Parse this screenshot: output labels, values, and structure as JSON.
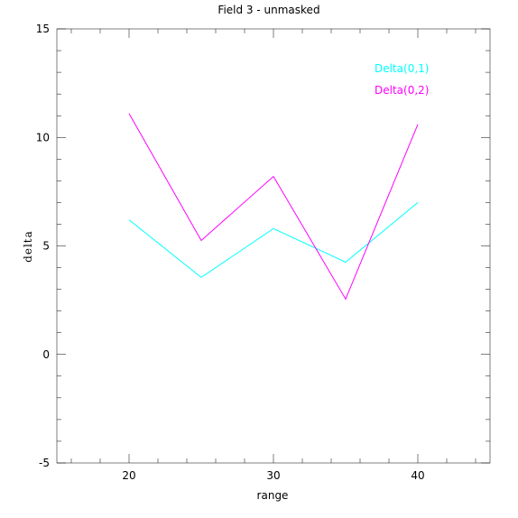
{
  "chart_data": {
    "type": "line",
    "title": "Field 3 - unmasked",
    "xlabel": "range",
    "ylabel": "delta",
    "xlim": [
      15,
      45
    ],
    "ylim": [
      -5,
      15
    ],
    "xticks": [
      20,
      30,
      40
    ],
    "xtick_labels": [
      "20",
      "30",
      "40"
    ],
    "yticks": [
      -5,
      0,
      5,
      10,
      15
    ],
    "ytick_labels": [
      "-5",
      "0",
      "5",
      "10",
      "15"
    ],
    "x": [
      20,
      25,
      30,
      35,
      40
    ],
    "series": [
      {
        "name": "Delta(0,1)",
        "color": "#00ffff",
        "values": [
          6.2,
          3.55,
          5.8,
          4.25,
          7.0
        ]
      },
      {
        "name": "Delta(0,2)",
        "color": "#ff00ff",
        "values": [
          11.1,
          5.25,
          8.2,
          2.55,
          10.6
        ]
      }
    ],
    "grid": false,
    "legend_position": "top-right"
  }
}
